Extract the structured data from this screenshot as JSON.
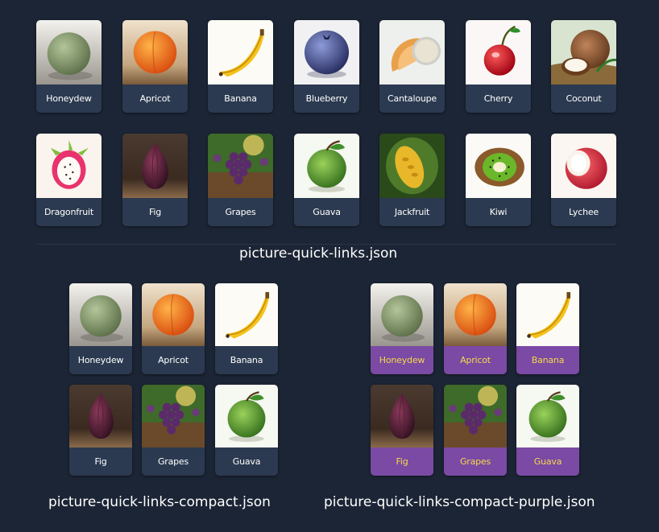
{
  "colors": {
    "background": "#1c2535",
    "card_label_bg": "#2b3a50",
    "purple_label_bg": "#7a4aa4",
    "purple_label_text": "#f6d84a"
  },
  "full": {
    "caption": "picture-quick-links.json",
    "row1": [
      {
        "label": "Honeydew",
        "icon": "honeydew-icon"
      },
      {
        "label": "Apricot",
        "icon": "apricot-icon"
      },
      {
        "label": "Banana",
        "icon": "banana-icon"
      },
      {
        "label": "Blueberry",
        "icon": "blueberry-icon"
      },
      {
        "label": "Cantaloupe",
        "icon": "cantaloupe-icon"
      },
      {
        "label": "Cherry",
        "icon": "cherry-icon"
      },
      {
        "label": "Coconut",
        "icon": "coconut-icon"
      }
    ],
    "row2": [
      {
        "label": "Dragonfruit",
        "icon": "dragonfruit-icon"
      },
      {
        "label": "Fig",
        "icon": "fig-icon"
      },
      {
        "label": "Grapes",
        "icon": "grapes-icon"
      },
      {
        "label": "Guava",
        "icon": "guava-icon"
      },
      {
        "label": "Jackfruit",
        "icon": "jackfruit-icon"
      },
      {
        "label": "Kiwi",
        "icon": "kiwi-icon"
      },
      {
        "label": "Lychee",
        "icon": "lychee-icon"
      }
    ]
  },
  "compact": {
    "caption": "picture-quick-links-compact.json",
    "row1": [
      {
        "label": "Honeydew",
        "icon": "honeydew-icon"
      },
      {
        "label": "Apricot",
        "icon": "apricot-icon"
      },
      {
        "label": "Banana",
        "icon": "banana-icon"
      }
    ],
    "row2": [
      {
        "label": "Fig",
        "icon": "fig-icon"
      },
      {
        "label": "Grapes",
        "icon": "grapes-icon"
      },
      {
        "label": "Guava",
        "icon": "guava-icon"
      }
    ]
  },
  "purple": {
    "caption": "picture-quick-links-compact-purple.json",
    "row1": [
      {
        "label": "Honeydew",
        "icon": "honeydew-icon"
      },
      {
        "label": "Apricot",
        "icon": "apricot-icon"
      },
      {
        "label": "Banana",
        "icon": "banana-icon"
      }
    ],
    "row2": [
      {
        "label": "Fig",
        "icon": "fig-icon"
      },
      {
        "label": "Grapes",
        "icon": "grapes-icon"
      },
      {
        "label": "Guava",
        "icon": "guava-icon"
      }
    ]
  }
}
